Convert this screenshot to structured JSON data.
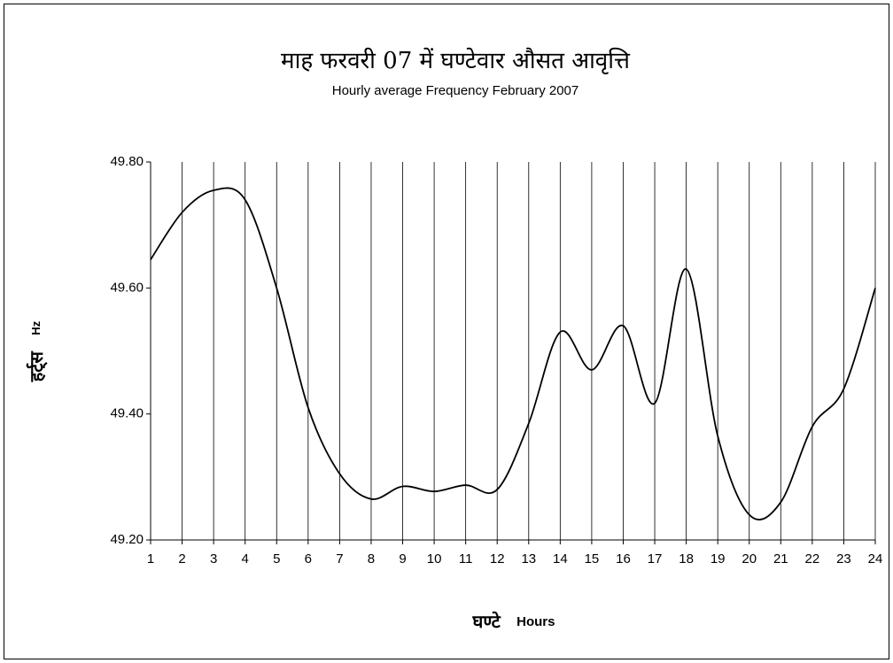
{
  "chart_data": {
    "type": "line",
    "title": "माह फरवरी 07 में घण्टेवार औसत आवृत्ति",
    "subtitle": "Hourly average Frequency February 2007",
    "ylabel": [
      "हर्ट्स",
      "Hz"
    ],
    "xlabel": [
      "घण्टे",
      "Hours"
    ],
    "x": [
      1,
      2,
      3,
      4,
      5,
      6,
      7,
      8,
      9,
      10,
      11,
      12,
      13,
      14,
      15,
      16,
      17,
      18,
      19,
      20,
      21,
      22,
      23,
      24
    ],
    "series": [
      {
        "color": "#000000",
        "values": [
          49.645,
          49.72,
          49.755,
          49.74,
          49.6,
          49.41,
          49.305,
          49.265,
          49.285,
          49.277,
          49.287,
          49.28,
          49.385,
          49.53,
          49.47,
          49.54,
          49.417,
          49.63,
          49.365,
          49.24,
          49.26,
          49.38,
          49.44,
          49.6
        ]
      }
    ],
    "xlim": [
      1,
      24
    ],
    "xticks": [
      1,
      2,
      3,
      4,
      5,
      6,
      7,
      8,
      9,
      10,
      11,
      12,
      13,
      14,
      15,
      16,
      17,
      18,
      19,
      20,
      21,
      22,
      23,
      24
    ],
    "ylim": [
      49.2,
      49.8
    ],
    "yticks": [
      {
        "value": 49.2,
        "label": "49.20"
      },
      {
        "value": 49.4,
        "label": "49.40"
      },
      {
        "value": 49.6,
        "label": "49.60"
      },
      {
        "value": 49.8,
        "label": "49.80"
      }
    ],
    "grid": "x"
  }
}
